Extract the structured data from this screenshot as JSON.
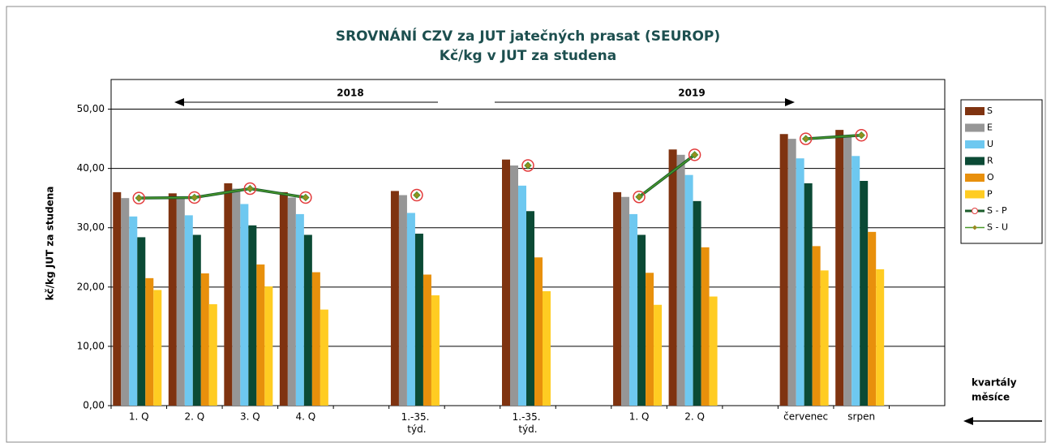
{
  "chart_data": {
    "type": "bar",
    "title": "SROVNÁNÍ  CZV za JUT jatečných prasat (SEUROP)",
    "subtitle": "Kč/kg v JUT za studena",
    "y_label": "kč/kg JUT za studena",
    "annotations": [
      "2018",
      "2019",
      "kvartály",
      "měsíce"
    ],
    "categories": [
      "1. Q",
      "2. Q",
      "3. Q",
      "4. Q",
      null,
      "1.-35. týd.",
      null,
      "1.-35. týd.",
      null,
      "1. Q",
      "2. Q",
      null,
      "červenec",
      "srpen",
      null
    ],
    "ylim": [
      0,
      55
    ],
    "yticks": [
      {
        "value": 0,
        "label": "0,00"
      },
      {
        "value": 10,
        "label": "10,00"
      },
      {
        "value": 20,
        "label": "20,00"
      },
      {
        "value": 30,
        "label": "30,00"
      },
      {
        "value": 40,
        "label": "40,00"
      },
      {
        "value": 50,
        "label": "50,00"
      }
    ],
    "grid": true,
    "legend": "right",
    "series": [
      {
        "name": "S",
        "type": "bar",
        "color": "#7f3310",
        "values": [
          36.0,
          35.8,
          37.5,
          36.0,
          null,
          36.2,
          null,
          41.5,
          null,
          36.0,
          43.2,
          null,
          45.8,
          46.5,
          null
        ]
      },
      {
        "name": "E",
        "type": "bar",
        "color": "#969696",
        "values": [
          35.0,
          35.1,
          36.6,
          35.1,
          null,
          35.5,
          null,
          40.5,
          null,
          35.2,
          42.3,
          null,
          45.0,
          45.6,
          null
        ]
      },
      {
        "name": "U",
        "type": "bar",
        "color": "#6ec8f0",
        "values": [
          31.9,
          32.1,
          34.0,
          32.3,
          null,
          32.5,
          null,
          37.1,
          null,
          32.3,
          38.9,
          null,
          41.7,
          42.1,
          null
        ]
      },
      {
        "name": "R",
        "type": "bar",
        "color": "#0b4a35",
        "values": [
          28.4,
          28.8,
          30.4,
          28.8,
          null,
          29.0,
          null,
          32.8,
          null,
          28.8,
          34.5,
          null,
          37.5,
          37.9,
          null
        ]
      },
      {
        "name": "O",
        "type": "bar",
        "color": "#e8900c",
        "values": [
          21.5,
          22.3,
          23.8,
          22.5,
          null,
          22.1,
          null,
          25.0,
          null,
          22.4,
          26.7,
          null,
          26.9,
          29.3,
          null
        ]
      },
      {
        "name": "P",
        "type": "bar",
        "color": "#ffcc22",
        "values": [
          19.5,
          17.1,
          20.1,
          16.2,
          null,
          18.6,
          null,
          19.3,
          null,
          17.0,
          18.4,
          null,
          22.8,
          23.0,
          null
        ]
      },
      {
        "name": "S - P",
        "type": "line",
        "color": "#1a5c2a",
        "marker_color": "#e23b3b",
        "values": [
          35.0,
          35.1,
          36.6,
          35.1,
          null,
          35.5,
          null,
          40.5,
          null,
          35.2,
          42.3,
          null,
          45.0,
          45.6,
          null
        ]
      },
      {
        "name": "S - U",
        "type": "line",
        "color": "#4a9a2a",
        "marker_color": "#9a8a20",
        "values": [
          35.0,
          35.1,
          36.6,
          35.1,
          null,
          35.5,
          null,
          40.5,
          null,
          35.2,
          42.3,
          null,
          45.0,
          45.6,
          null
        ]
      }
    ]
  }
}
